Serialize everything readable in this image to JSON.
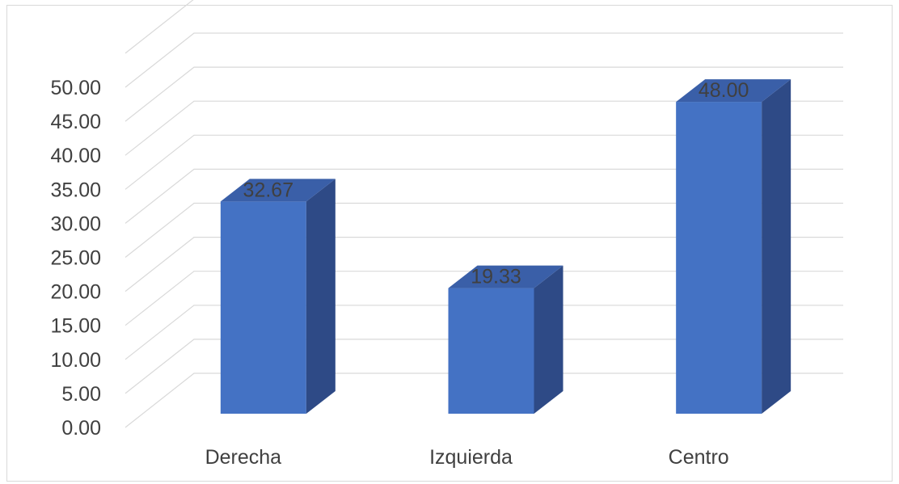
{
  "chart_data": {
    "type": "bar",
    "style": "3d-column",
    "categories": [
      "Derecha",
      "Izquierda",
      "Centro"
    ],
    "values": [
      32.67,
      19.33,
      48.0
    ],
    "value_labels": [
      "32.67",
      "19.33",
      "48.00"
    ],
    "ylim": [
      0,
      50
    ],
    "y_ticks": [
      "0.00",
      "5.00",
      "10.00",
      "15.00",
      "20.00",
      "25.00",
      "30.00",
      "35.00",
      "40.00",
      "45.00",
      "50.00"
    ],
    "grid": true,
    "legend": "none",
    "title": "",
    "xlabel": "",
    "ylabel": "",
    "colors": {
      "bar_front": "#4472c4",
      "bar_side": "#2e4a86",
      "bar_top": "#3a5fa8",
      "grid": "#d9d9d9",
      "text": "#404040",
      "border": "#d9d9d9"
    }
  }
}
